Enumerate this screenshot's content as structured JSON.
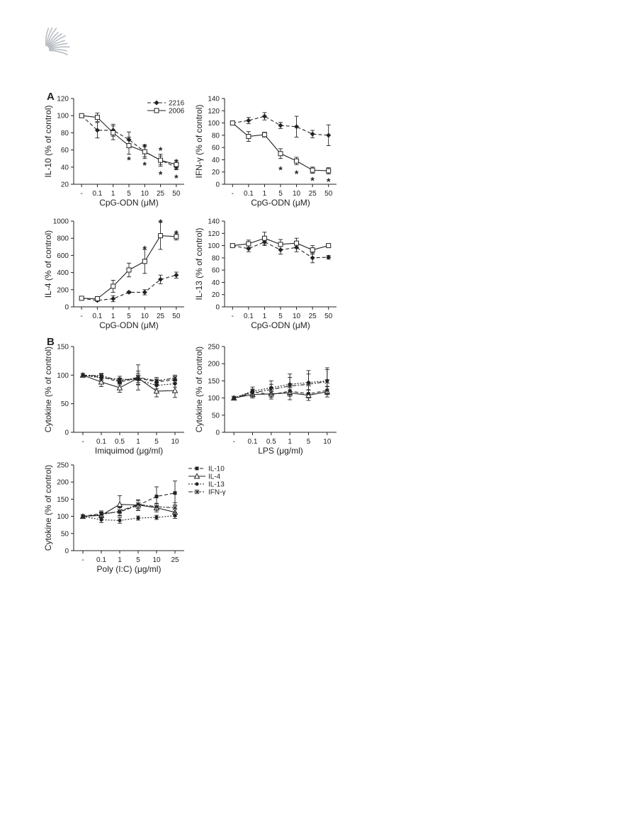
{
  "panel_labels": {
    "a": "A",
    "b": "B"
  },
  "legend_cpg": [
    {
      "name": "2216",
      "style": "dashed",
      "marker": "diamond"
    },
    {
      "name": "2006",
      "style": "solid",
      "marker": "square-open"
    }
  ],
  "legend_tlr": [
    {
      "name": "IL-10",
      "style": "dash",
      "marker": "square"
    },
    {
      "name": "IL-4",
      "style": "solid",
      "marker": "triangle-open"
    },
    {
      "name": "IL-13",
      "style": "dot",
      "marker": "circle"
    },
    {
      "name": "IFN-γ",
      "style": "dashdot",
      "marker": "star"
    }
  ],
  "chart_data": [
    {
      "id": "il10",
      "type": "line",
      "xlabel": "CpG-ODN (μM)",
      "ylabel": "IL-10 (% of control)",
      "categories": [
        "-",
        "0.1",
        "1",
        "5",
        "10",
        "25",
        "50"
      ],
      "ylim": [
        20,
        120
      ],
      "yticks": [
        20,
        40,
        60,
        80,
        100,
        120
      ],
      "series": [
        {
          "name": "2216",
          "style": "dashed",
          "marker": "diamond",
          "values": [
            100,
            83,
            83,
            72,
            58,
            48,
            40
          ],
          "errors": [
            0,
            9,
            7,
            9,
            6,
            5,
            3
          ]
        },
        {
          "name": "2006",
          "style": "solid",
          "marker": "square-open",
          "values": [
            100,
            98,
            80,
            65,
            58,
            48,
            43
          ],
          "errors": [
            0,
            5,
            8,
            10,
            8,
            7,
            5
          ]
        }
      ],
      "annotations": [
        {
          "x": "5",
          "y": 51,
          "text": "*"
        },
        {
          "x": "10",
          "y": 66,
          "text": "*"
        },
        {
          "x": "10",
          "y": 45,
          "text": "*"
        },
        {
          "x": "25",
          "y": 62,
          "text": "*"
        },
        {
          "x": "25",
          "y": 34,
          "text": "*"
        },
        {
          "x": "50",
          "y": 48,
          "text": "*"
        },
        {
          "x": "50",
          "y": 30,
          "text": "*"
        }
      ]
    },
    {
      "id": "ifng",
      "type": "line",
      "xlabel": "CpG-ODN (μM)",
      "ylabel": "IFN-γ (% of control)",
      "categories": [
        "-",
        "0.1",
        "1",
        "5",
        "10",
        "25",
        "50"
      ],
      "ylim": [
        0,
        140
      ],
      "yticks": [
        0,
        20,
        40,
        60,
        80,
        100,
        120,
        140
      ],
      "series": [
        {
          "name": "2216",
          "style": "dashed",
          "marker": "diamond",
          "values": [
            100,
            104,
            111,
            96,
            94,
            82,
            80
          ],
          "errors": [
            0,
            5,
            6,
            5,
            17,
            6,
            17
          ]
        },
        {
          "name": "2006",
          "style": "solid",
          "marker": "square-open",
          "values": [
            100,
            78,
            81,
            50,
            38,
            23,
            22
          ],
          "errors": [
            0,
            8,
            4,
            8,
            6,
            5,
            5
          ]
        }
      ],
      "annotations": [
        {
          "x": "5",
          "y": 27,
          "text": "*"
        },
        {
          "x": "10",
          "y": 21,
          "text": "*"
        },
        {
          "x": "25",
          "y": 10,
          "text": "*"
        },
        {
          "x": "50",
          "y": 8,
          "text": "*"
        }
      ]
    },
    {
      "id": "il4",
      "type": "line",
      "xlabel": "CpG-ODN (μM)",
      "ylabel": "IL-4 (% of control)",
      "categories": [
        "-",
        "0.1",
        "1",
        "5",
        "10",
        "25",
        "50"
      ],
      "ylim": [
        0,
        1000
      ],
      "yticks": [
        0,
        200,
        400,
        600,
        800,
        1000
      ],
      "series": [
        {
          "name": "2216",
          "style": "dashed",
          "marker": "diamond",
          "values": [
            100,
            75,
            95,
            170,
            170,
            320,
            370
          ],
          "errors": [
            0,
            10,
            35,
            10,
            30,
            50,
            35
          ]
        },
        {
          "name": "2006",
          "style": "solid",
          "marker": "square-open",
          "values": [
            100,
            95,
            240,
            430,
            530,
            830,
            820
          ],
          "errors": [
            0,
            10,
            70,
            80,
            140,
            160,
            40
          ]
        }
      ],
      "annotations": [
        {
          "x": "10",
          "y": 700,
          "text": "*"
        },
        {
          "x": "25",
          "y": 1010,
          "text": "*"
        },
        {
          "x": "50",
          "y": 880,
          "text": "*"
        }
      ]
    },
    {
      "id": "il13",
      "type": "line",
      "xlabel": "CpG-ODN (μM)",
      "ylabel": "IL-13 (% of control)",
      "categories": [
        "-",
        "0.1",
        "1",
        "5",
        "10",
        "25",
        "50"
      ],
      "ylim": [
        0,
        140
      ],
      "yticks": [
        0,
        20,
        40,
        60,
        80,
        100,
        120,
        140
      ],
      "series": [
        {
          "name": "2216",
          "style": "dashed",
          "marker": "diamond",
          "values": [
            100,
            95,
            106,
            93,
            97,
            80,
            81
          ],
          "errors": [
            0,
            5,
            6,
            7,
            7,
            8,
            3
          ]
        },
        {
          "name": "2006",
          "style": "solid",
          "marker": "square-open",
          "values": [
            100,
            103,
            112,
            102,
            104,
            93,
            100
          ],
          "errors": [
            0,
            6,
            10,
            8,
            8,
            7,
            3
          ]
        }
      ],
      "annotations": []
    },
    {
      "id": "imiquimod",
      "type": "line",
      "xlabel": "Imiquimod (μg/ml)",
      "ylabel": "Cytokine (% of control)",
      "categories": [
        "-",
        "0.1",
        "0.5",
        "1",
        "5",
        "10"
      ],
      "ylim": [
        0,
        150
      ],
      "yticks": [
        0,
        50,
        100,
        150
      ],
      "series": [
        {
          "name": "IL-10",
          "style": "dash",
          "marker": "square",
          "values": [
            100,
            97,
            88,
            95,
            88,
            92
          ],
          "errors": [
            0,
            5,
            5,
            8,
            5,
            5
          ]
        },
        {
          "name": "IL-4",
          "style": "solid",
          "marker": "triangle-open",
          "values": [
            100,
            88,
            78,
            95,
            72,
            73
          ],
          "errors": [
            0,
            8,
            8,
            12,
            10,
            12
          ]
        },
        {
          "name": "IL-13",
          "style": "dot",
          "marker": "circle",
          "values": [
            100,
            95,
            93,
            92,
            82,
            85
          ],
          "errors": [
            0,
            5,
            5,
            8,
            6,
            6
          ]
        },
        {
          "name": "IFN-γ",
          "style": "dashdot",
          "marker": "star",
          "values": [
            100,
            99,
            90,
            96,
            90,
            95
          ],
          "errors": [
            0,
            4,
            5,
            22,
            6,
            5
          ]
        }
      ]
    },
    {
      "id": "lps",
      "type": "line",
      "xlabel": "LPS (μg/ml)",
      "ylabel": "Cytokine (% of control)",
      "categories": [
        "-",
        "0.1",
        "0.5",
        "1",
        "5",
        "10"
      ],
      "ylim": [
        0,
        250
      ],
      "yticks": [
        0,
        50,
        100,
        150,
        200,
        250
      ],
      "series": [
        {
          "name": "IL-10",
          "style": "dash",
          "marker": "square",
          "values": [
            100,
            118,
            110,
            120,
            112,
            122
          ],
          "errors": [
            0,
            8,
            8,
            15,
            12,
            12
          ]
        },
        {
          "name": "IL-4",
          "style": "solid",
          "marker": "triangle-open",
          "values": [
            100,
            110,
            112,
            115,
            108,
            118
          ],
          "errors": [
            0,
            10,
            15,
            20,
            15,
            15
          ]
        },
        {
          "name": "IL-13",
          "style": "dot",
          "marker": "circle",
          "values": [
            100,
            120,
            130,
            140,
            145,
            150
          ],
          "errors": [
            0,
            12,
            20,
            30,
            35,
            38
          ]
        },
        {
          "name": "IFN-γ",
          "style": "dashdot",
          "marker": "star",
          "values": [
            100,
            115,
            125,
            135,
            140,
            148
          ],
          "errors": [
            0,
            10,
            15,
            25,
            30,
            35
          ]
        }
      ]
    },
    {
      "id": "polyic",
      "type": "line",
      "xlabel": "Poly (I:C) (μg/ml)",
      "ylabel": "Cytokine (% of control)",
      "categories": [
        "-",
        "0.1",
        "1",
        "5",
        "10",
        "25"
      ],
      "ylim": [
        0,
        250
      ],
      "yticks": [
        0,
        50,
        100,
        150,
        200,
        250
      ],
      "series": [
        {
          "name": "IL-10",
          "style": "dash",
          "marker": "square",
          "values": [
            100,
            108,
            113,
            132,
            158,
            168
          ],
          "errors": [
            0,
            8,
            12,
            15,
            28,
            35
          ]
        },
        {
          "name": "IL-4",
          "style": "solid",
          "marker": "triangle-open",
          "values": [
            100,
            103,
            135,
            133,
            125,
            112
          ],
          "errors": [
            0,
            8,
            25,
            15,
            12,
            12
          ]
        },
        {
          "name": "IL-13",
          "style": "dot",
          "marker": "circle",
          "values": [
            100,
            90,
            88,
            95,
            97,
            102
          ],
          "errors": [
            0,
            8,
            8,
            6,
            6,
            8
          ]
        },
        {
          "name": "IFN-γ",
          "style": "dashdot",
          "marker": "star",
          "values": [
            100,
            105,
            115,
            135,
            128,
            125
          ],
          "errors": [
            0,
            8,
            12,
            12,
            10,
            15
          ]
        }
      ]
    }
  ]
}
